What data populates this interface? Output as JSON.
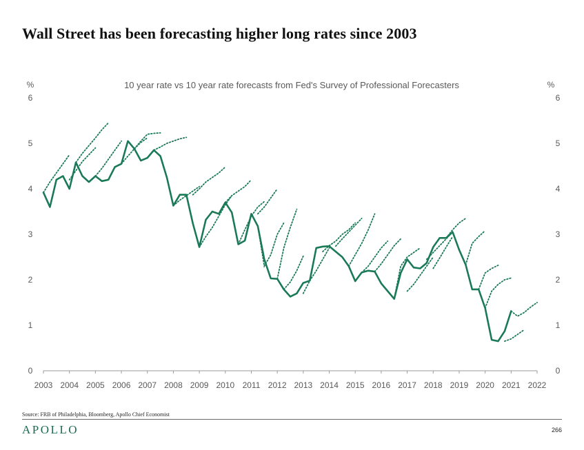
{
  "page": {
    "title": "Wall Street has been forecasting higher long rates since 2003",
    "source": "Source: FRB of Philadelphia, Bloomberg, Apollo Chief Economist",
    "logo": "APOLLO",
    "page_number": "266"
  },
  "colors": {
    "line": "#1a7a57",
    "axis": "#9a9a9a",
    "text": "#595959"
  },
  "chart_data": {
    "type": "line",
    "title": "10 year rate vs 10 year rate forecasts from Fed's Survey of Professional Forecasters",
    "ylabel_left": "%",
    "ylabel_right": "%",
    "xlim": [
      2003,
      2022
    ],
    "ylim": [
      0,
      6
    ],
    "y_ticks": [
      "0",
      "1",
      "2",
      "3",
      "4",
      "5",
      "6"
    ],
    "x_ticks": [
      "2003",
      "2004",
      "2005",
      "2006",
      "2007",
      "2008",
      "2009",
      "2010",
      "2011",
      "2012",
      "2013",
      "2014",
      "2015",
      "2016",
      "2017",
      "2018",
      "2019",
      "2020",
      "2021",
      "2022"
    ],
    "grid": false,
    "legend": "none",
    "actual": {
      "style": "solid",
      "x": [
        2003.0,
        2003.25,
        2003.5,
        2003.75,
        2004.0,
        2004.25,
        2004.5,
        2004.75,
        2005.0,
        2005.25,
        2005.5,
        2005.75,
        2006.0,
        2006.25,
        2006.5,
        2006.75,
        2007.0,
        2007.25,
        2007.5,
        2007.75,
        2008.0,
        2008.25,
        2008.5,
        2008.75,
        2009.0,
        2009.25,
        2009.5,
        2009.75,
        2010.0,
        2010.25,
        2010.5,
        2010.75,
        2011.0,
        2011.25,
        2011.5,
        2011.75,
        2012.0,
        2012.25,
        2012.5,
        2012.75,
        2013.0,
        2013.25,
        2013.5,
        2013.75,
        2014.0,
        2014.25,
        2014.5,
        2014.75,
        2015.0,
        2015.25,
        2015.5,
        2015.75,
        2016.0,
        2016.25,
        2016.5,
        2016.75,
        2017.0,
        2017.25,
        2017.5,
        2017.75,
        2018.0,
        2018.25,
        2018.5,
        2018.75,
        2019.0,
        2019.25,
        2019.5,
        2019.75,
        2020.0,
        2020.25,
        2020.5,
        2020.75,
        2021.0
      ],
      "y": [
        3.92,
        3.6,
        4.2,
        4.28,
        4.0,
        4.58,
        4.28,
        4.15,
        4.28,
        4.17,
        4.2,
        4.48,
        4.55,
        5.05,
        4.88,
        4.62,
        4.68,
        4.85,
        4.72,
        4.25,
        3.63,
        3.87,
        3.87,
        3.24,
        2.72,
        3.32,
        3.5,
        3.45,
        3.7,
        3.48,
        2.78,
        2.86,
        3.45,
        3.18,
        2.45,
        2.03,
        2.02,
        1.79,
        1.63,
        1.7,
        1.93,
        1.98,
        2.7,
        2.73,
        2.74,
        2.62,
        2.5,
        2.3,
        1.97,
        2.16,
        2.2,
        2.18,
        1.92,
        1.75,
        1.58,
        2.15,
        2.45,
        2.27,
        2.25,
        2.37,
        2.72,
        2.92,
        2.92,
        3.05,
        2.66,
        2.33,
        1.79,
        1.79,
        1.38,
        0.68,
        0.65,
        0.87,
        1.31
      ]
    },
    "forecasts": [
      {
        "x": [
          2003.0,
          2003.25,
          2003.5,
          2003.75,
          2004.0
        ],
        "y": [
          3.92,
          4.15,
          4.35,
          4.55,
          4.75
        ]
      },
      {
        "x": [
          2004.25,
          2004.5,
          2004.75,
          2005.0,
          2005.25,
          2005.5
        ],
        "y": [
          4.58,
          4.78,
          4.95,
          5.12,
          5.3,
          5.45
        ]
      },
      {
        "x": [
          2004.0,
          2004.25,
          2004.5,
          2004.75,
          2005.0
        ],
        "y": [
          4.2,
          4.4,
          4.6,
          4.75,
          4.9
        ]
      },
      {
        "x": [
          2005.0,
          2005.25,
          2005.5,
          2005.75,
          2006.0
        ],
        "y": [
          4.28,
          4.45,
          4.65,
          4.85,
          5.05
        ]
      },
      {
        "x": [
          2006.0,
          2006.25,
          2006.5,
          2006.75,
          2007.0
        ],
        "y": [
          4.55,
          4.72,
          4.88,
          5.02,
          5.12
        ]
      },
      {
        "x": [
          2006.5,
          2006.75,
          2007.0,
          2007.25,
          2007.5
        ],
        "y": [
          4.88,
          5.05,
          5.2,
          5.22,
          5.23
        ]
      },
      {
        "x": [
          2007.25,
          2007.5,
          2007.75,
          2008.0,
          2008.25,
          2008.5
        ],
        "y": [
          4.85,
          4.92,
          5.0,
          5.05,
          5.1,
          5.13
        ]
      },
      {
        "x": [
          2008.0,
          2008.25,
          2008.5,
          2008.75,
          2009.0
        ],
        "y": [
          3.63,
          3.75,
          3.85,
          3.95,
          4.05
        ]
      },
      {
        "x": [
          2008.75,
          2009.0,
          2009.25,
          2009.5,
          2009.75,
          2010.0
        ],
        "y": [
          3.87,
          4.0,
          4.15,
          4.25,
          4.35,
          4.48
        ]
      },
      {
        "x": [
          2009.0,
          2009.25,
          2009.5,
          2009.75,
          2010.0,
          2010.25
        ],
        "y": [
          2.72,
          2.95,
          3.15,
          3.4,
          3.65,
          3.85
        ]
      },
      {
        "x": [
          2010.0,
          2010.25,
          2010.5,
          2010.75,
          2011.0
        ],
        "y": [
          3.7,
          3.85,
          3.95,
          4.05,
          4.2
        ]
      },
      {
        "x": [
          2010.5,
          2010.75,
          2011.0,
          2011.25,
          2011.5
        ],
        "y": [
          2.78,
          3.1,
          3.4,
          3.6,
          3.72
        ]
      },
      {
        "x": [
          2011.25,
          2011.5,
          2011.75,
          2012.0
        ],
        "y": [
          3.45,
          3.6,
          3.8,
          4.0
        ]
      },
      {
        "x": [
          2011.25,
          2011.5,
          2011.75,
          2012.0,
          2012.25
        ],
        "y": [
          3.18,
          2.3,
          2.55,
          3.0,
          3.25
        ]
      },
      {
        "x": [
          2012.0,
          2012.25,
          2012.5,
          2012.75
        ],
        "y": [
          2.02,
          2.7,
          3.15,
          3.55
        ]
      },
      {
        "x": [
          2012.25,
          2012.5,
          2012.75,
          2013.0
        ],
        "y": [
          1.79,
          1.95,
          2.2,
          2.52
        ]
      },
      {
        "x": [
          2013.0,
          2013.25,
          2013.5,
          2013.75,
          2014.0
        ],
        "y": [
          1.7,
          1.98,
          2.2,
          2.45,
          2.7
        ]
      },
      {
        "x": [
          2013.75,
          2014.0,
          2014.25,
          2014.5,
          2014.75,
          2015.0
        ],
        "y": [
          2.62,
          2.75,
          2.85,
          3.0,
          3.1,
          3.25
        ]
      },
      {
        "x": [
          2014.25,
          2014.5,
          2014.75,
          2015.0,
          2015.25
        ],
        "y": [
          2.74,
          2.9,
          3.05,
          3.2,
          3.35
        ]
      },
      {
        "x": [
          2014.75,
          2015.0,
          2015.25,
          2015.5,
          2015.75
        ],
        "y": [
          2.3,
          2.55,
          2.8,
          3.1,
          3.45
        ]
      },
      {
        "x": [
          2015.25,
          2015.5,
          2015.75,
          2016.0,
          2016.25
        ],
        "y": [
          2.16,
          2.3,
          2.5,
          2.7,
          2.85
        ]
      },
      {
        "x": [
          2015.75,
          2016.0,
          2016.25,
          2016.5,
          2016.75
        ],
        "y": [
          2.18,
          2.35,
          2.55,
          2.75,
          2.9
        ]
      },
      {
        "x": [
          2016.5,
          2016.75,
          2017.0,
          2017.25,
          2017.5
        ],
        "y": [
          1.58,
          2.3,
          2.5,
          2.6,
          2.7
        ]
      },
      {
        "x": [
          2017.0,
          2017.25,
          2017.5,
          2017.75,
          2018.0
        ],
        "y": [
          1.75,
          1.9,
          2.1,
          2.3,
          2.5
        ]
      },
      {
        "x": [
          2017.75,
          2018.0,
          2018.25,
          2018.5,
          2018.75
        ],
        "y": [
          2.45,
          2.6,
          2.75,
          2.9,
          3.05
        ]
      },
      {
        "x": [
          2018.5,
          2018.75,
          2019.0,
          2019.25
        ],
        "y": [
          2.92,
          3.1,
          3.25,
          3.35
        ]
      },
      {
        "x": [
          2018.0,
          2018.25,
          2018.5,
          2018.75
        ],
        "y": [
          2.25,
          2.48,
          2.72,
          2.95
        ]
      },
      {
        "x": [
          2019.25,
          2019.5,
          2019.75,
          2020.0
        ],
        "y": [
          2.33,
          2.8,
          2.95,
          3.08
        ]
      },
      {
        "x": [
          2019.75,
          2020.0,
          2020.25,
          2020.5
        ],
        "y": [
          1.79,
          2.15,
          2.25,
          2.32
        ]
      },
      {
        "x": [
          2020.0,
          2020.25,
          2020.5,
          2020.75,
          2021.0
        ],
        "y": [
          1.38,
          1.75,
          1.9,
          2.0,
          2.04
        ]
      },
      {
        "x": [
          2020.75,
          2021.0,
          2021.25,
          2021.5
        ],
        "y": [
          0.65,
          0.7,
          0.8,
          0.9
        ]
      },
      {
        "x": [
          2021.0,
          2021.25,
          2021.5,
          2021.75,
          2022.0
        ],
        "y": [
          1.31,
          1.2,
          1.28,
          1.4,
          1.5
        ]
      }
    ]
  }
}
